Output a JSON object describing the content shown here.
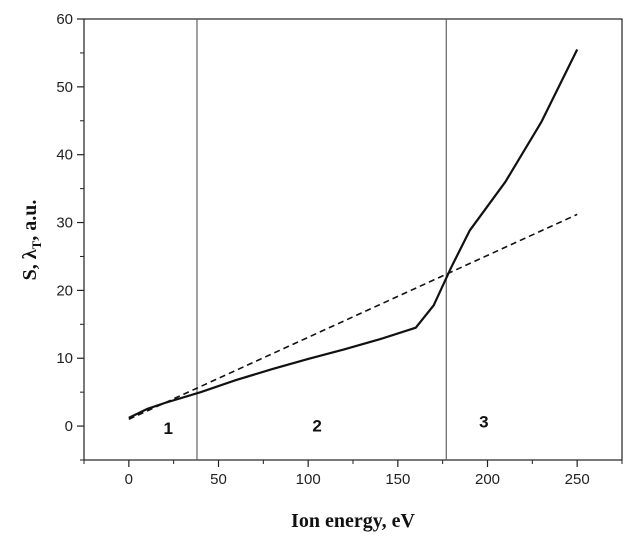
{
  "chart_data": {
    "type": "line",
    "xlabel": "Ion energy, eV",
    "ylabel_main": "S, λ",
    "ylabel_sub": "T",
    "ylabel_rest": ", a.u.",
    "xlim": [
      -25,
      275
    ],
    "ylim": [
      -5,
      60
    ],
    "x_ticks": [
      0,
      50,
      100,
      150,
      200,
      250
    ],
    "y_ticks": [
      0,
      10,
      20,
      30,
      40,
      50,
      60
    ],
    "grid": false,
    "series": [
      {
        "style": "solid",
        "x": [
          0,
          10,
          20,
          40,
          60,
          80,
          100,
          120,
          140,
          160,
          170,
          180,
          190,
          210,
          230,
          250
        ],
        "y": [
          1.2,
          2.5,
          3.4,
          5.0,
          6.8,
          8.4,
          9.9,
          11.3,
          12.8,
          14.5,
          17.8,
          23.5,
          28.8,
          36.0,
          44.8,
          55.5
        ]
      },
      {
        "style": "dashed",
        "x": [
          0,
          250
        ],
        "y": [
          1.0,
          31.2
        ]
      }
    ],
    "vertical_lines": [
      38,
      177
    ],
    "regions": [
      {
        "label": "1",
        "x": 22,
        "y": -1.2
      },
      {
        "label": "2",
        "x": 105,
        "y": -0.8
      },
      {
        "label": "3",
        "x": 198,
        "y": -0.2
      }
    ]
  }
}
